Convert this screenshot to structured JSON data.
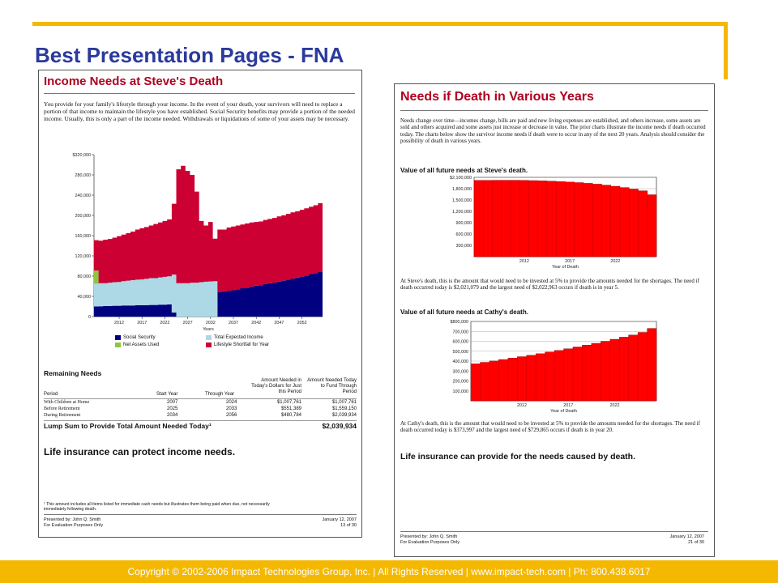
{
  "slide": {
    "title": "Best Presentation Pages - FNA",
    "footer": "Copyright © 2002-2006 Impact Technologies Group, Inc.   |   All Rights Reserved   |   www.impact-tech.com   |   Ph: 800.438.6017"
  },
  "left_page": {
    "title": "Income Needs at Steve's Death",
    "intro": "You provide for your family's lifestyle through your income. In the event of your death, your survivors will need to replace a portion of that income to maintain the lifestyle you have established. Social Security benefits may provide a portion of the needed income. Usually, this is only a part of the income needed. Withdrawals or liquidations of some of your assets may be necessary.",
    "x_axis_title": "Years",
    "legend": [
      "Social Security",
      "Total Expected Income",
      "Net Assets Used",
      "Lifestyle Shortfall for Year"
    ],
    "remaining_needs": {
      "heading": "Remaining Needs",
      "col_headers": [
        "Period",
        "Start Year",
        "Through Year",
        "Amount Needed in Today's Dollars for Just this Period",
        "Amount Needed Today to Fund Through Period"
      ],
      "rows": [
        [
          "With Children at Home",
          "2007",
          "2024",
          "$1,007,761",
          "$1,007,761"
        ],
        [
          "Before Retirement",
          "2025",
          "2033",
          "$551,389",
          "$1,559,150"
        ],
        [
          "During Retirement",
          "2034",
          "2056",
          "$480,784",
          "$2,039,934"
        ]
      ],
      "lump_label": "Lump Sum to Provide Total Amount Needed Today¹",
      "lump_value": "$2,039,934"
    },
    "closing": "Life insurance can protect income needs.",
    "footnote": "¹ This amount includes all items listed for immediate cash needs but illustrates them being paid when due, not necessarily immediately following death.",
    "presented_by": "Presented by: John Q. Smith",
    "purpose": "For Evaluation Purposes Only",
    "date": "January 12, 2007",
    "page_no": "13 of 30"
  },
  "right_page": {
    "title": "Needs if Death in Various Years",
    "intro": "Needs change over time—incomes change, bills are paid and new living expenses are established, and others increase, some assets are sold and others acquired and some assets just increase or decrease in value. The prior charts illustrate the income needs if death occurred today. The charts below show the survivor income needs if death were to occur in any of the next 20 years. Analysis should consider the possibility of death in various years.",
    "chart1_heading": "Value of all future needs at Steve's death.",
    "chart1_xlabel": "Year of Death",
    "chart1_note": "At Steve's death, this is the amount that would need to be invested at 5% to provide the amounts needed for the shortages. The need if death occurred today is $2,021,079 and the largest need of $2,022,963 occurs if death is in year 5.",
    "chart2_heading": "Value of all future needs at Cathy's death.",
    "chart2_xlabel": "Year of Death",
    "chart2_note": "At Cathy's death, this is the amount that would need to be invested at 5% to provide the amounts needed for the shortages. The need if death occurred today is $373,997 and the largest need of $729,865 occurs if death is in year 20.",
    "closing": "Life insurance can provide for the needs caused by death.",
    "presented_by": "Presented by: John Q. Smith",
    "purpose": "For Evaluation Purposes Only",
    "date": "January 12, 2007",
    "page_no": "21 of 30"
  },
  "chart_data": [
    {
      "type": "area",
      "stacked": true,
      "years": [
        2007,
        2008,
        2009,
        2010,
        2011,
        2012,
        2013,
        2014,
        2015,
        2016,
        2017,
        2018,
        2019,
        2020,
        2021,
        2022,
        2023,
        2024,
        2025,
        2026,
        2027,
        2028,
        2029,
        2030,
        2031,
        2032,
        2033,
        2034,
        2035,
        2036,
        2037,
        2038,
        2039,
        2040,
        2041,
        2042,
        2043,
        2044,
        2045,
        2046,
        2047,
        2048,
        2049,
        2050,
        2051,
        2052,
        2053,
        2054,
        2055,
        2056
      ],
      "xticks": [
        "2012",
        "2017",
        "2022",
        "2027",
        "2032",
        "2037",
        "2042",
        "2047",
        "2052"
      ],
      "yticks": [
        "0",
        "40,000",
        "80,000",
        "120,000",
        "160,000",
        "200,000",
        "240,000",
        "280,000",
        "$320,000"
      ],
      "ylim": [
        0,
        320000
      ],
      "xlabel": "Years",
      "colors": {
        "social_security": "#000080",
        "total_expected_income": "#add8e6",
        "net_assets_used": "#8dc63f",
        "lifestyle_shortfall": "#cc0033"
      },
      "series": [
        {
          "name": "Social Security",
          "values": [
            20000,
            20500,
            21000,
            21000,
            21500,
            21500,
            22000,
            22000,
            22000,
            22500,
            22500,
            22500,
            23000,
            23000,
            23500,
            23500,
            24000,
            8000,
            0,
            0,
            0,
            0,
            0,
            0,
            0,
            0,
            0,
            48000,
            50000,
            51000,
            52000,
            54000,
            56000,
            57000,
            59000,
            61000,
            62000,
            64000,
            66000,
            67000,
            69000,
            71000,
            73000,
            75000,
            77000,
            79000,
            81000,
            84000,
            86000,
            88000
          ]
        },
        {
          "name": "Total Expected Income",
          "values": [
            45000,
            45500,
            45000,
            46000,
            46500,
            47000,
            48000,
            49000,
            50000,
            50500,
            51000,
            52000,
            53000,
            53000,
            54000,
            55000,
            55500,
            75000,
            66000,
            66000,
            66000,
            67000,
            67000,
            68000,
            69000,
            69500,
            70000,
            0,
            0,
            0,
            0,
            0,
            0,
            0,
            0,
            0,
            0,
            0,
            0,
            0,
            0,
            0,
            0,
            0,
            0,
            0,
            0,
            0,
            0,
            0
          ]
        },
        {
          "name": "Net Assets Used",
          "values": [
            26000,
            0,
            0,
            0,
            0,
            0,
            0,
            0,
            0,
            0,
            0,
            0,
            0,
            0,
            0,
            0,
            0,
            0,
            0,
            0,
            0,
            0,
            0,
            0,
            0,
            0,
            0,
            0,
            0,
            0,
            0,
            0,
            0,
            0,
            0,
            0,
            0,
            0,
            0,
            0,
            0,
            0,
            0,
            0,
            0,
            0,
            0,
            0,
            0,
            0
          ]
        },
        {
          "name": "Lifestyle Shortfall for Year",
          "values": [
            60000,
            84000,
            86000,
            86500,
            88000,
            90500,
            92000,
            94000,
            96000,
            99000,
            101000,
            102500,
            104000,
            107000,
            108500,
            110500,
            112500,
            140000,
            225000,
            232000,
            222000,
            213000,
            180000,
            121000,
            111000,
            117500,
            84000,
            124000,
            122000,
            125000,
            126000,
            126000,
            126000,
            127000,
            127000,
            126000,
            126000,
            127000,
            127000,
            128000,
            129000,
            129000,
            130000,
            131000,
            131000,
            132000,
            133000,
            133000,
            134000,
            136000
          ]
        }
      ]
    },
    {
      "type": "area",
      "x": [
        2007,
        2008,
        2009,
        2010,
        2011,
        2012,
        2013,
        2014,
        2015,
        2016,
        2017,
        2018,
        2019,
        2020,
        2021,
        2022,
        2023,
        2024,
        2025,
        2026
      ],
      "xticks": [
        "2012",
        "2017",
        "2022"
      ],
      "yticks": [
        "300,000",
        "600,000",
        "900,000",
        "1,200,000",
        "1,500,000",
        "1,800,000",
        "$2,100,000"
      ],
      "ylim": [
        0,
        2100000
      ],
      "xlabel": "Year of Death",
      "color": "#ff0000",
      "values": [
        2021079,
        2021500,
        2022000,
        2022600,
        2022963,
        2020000,
        2015000,
        2008000,
        1999000,
        1988000,
        1975000,
        1960000,
        1942000,
        1920000,
        1895000,
        1865000,
        1830000,
        1790000,
        1745000,
        1640000
      ]
    },
    {
      "type": "area",
      "x": [
        2007,
        2008,
        2009,
        2010,
        2011,
        2012,
        2013,
        2014,
        2015,
        2016,
        2017,
        2018,
        2019,
        2020,
        2021,
        2022,
        2023,
        2024,
        2025,
        2026
      ],
      "xticks": [
        "2012",
        "2017",
        "2022"
      ],
      "yticks": [
        "100,000",
        "200,000",
        "300,000",
        "400,000",
        "500,000",
        "600,000",
        "700,000",
        "$800,000"
      ],
      "ylim": [
        0,
        800000
      ],
      "xlabel": "Year of Death",
      "color": "#ff0000",
      "values": [
        373997,
        388000,
        402000,
        416000,
        430000,
        445000,
        460000,
        475000,
        492000,
        508000,
        525000,
        543000,
        561000,
        580000,
        600000,
        620000,
        642000,
        664000,
        690000,
        729865
      ]
    }
  ]
}
